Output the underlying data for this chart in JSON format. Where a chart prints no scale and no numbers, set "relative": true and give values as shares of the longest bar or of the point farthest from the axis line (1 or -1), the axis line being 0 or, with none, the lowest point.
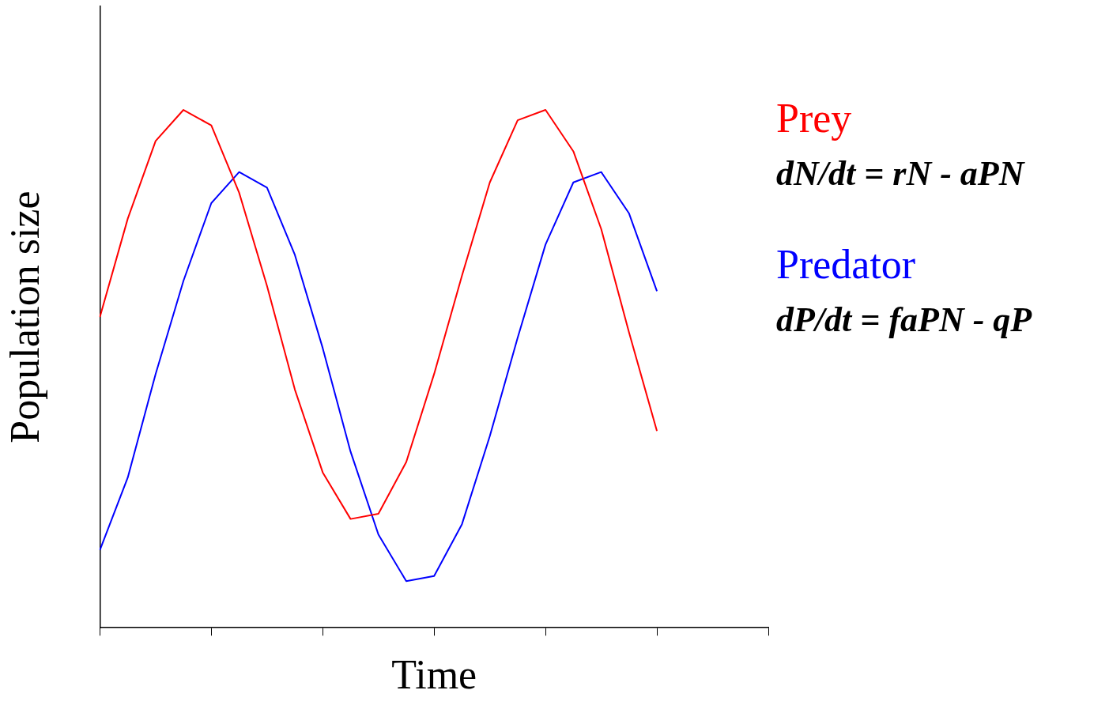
{
  "chart_data": {
    "type": "line",
    "xlabel": "Time",
    "ylabel": "Population size",
    "relative": true,
    "legend": "right",
    "grid": false,
    "marker": "none",
    "categories": [
      null,
      null,
      null,
      null,
      null,
      null,
      null,
      null,
      null,
      null,
      null,
      null,
      null,
      null,
      null,
      null,
      null,
      null,
      null,
      null,
      null,
      null,
      null,
      null,
      null
    ],
    "series": [
      {
        "name": "Prey",
        "color": "#ff0000",
        "values": [
          0.6,
          0.79,
          0.94,
          1,
          0.97,
          0.84,
          0.66,
          0.46,
          0.3,
          0.21,
          0.22,
          0.32,
          0.49,
          0.68,
          0.86,
          0.98,
          1,
          0.92,
          0.77,
          0.57,
          0.38,
          null,
          null,
          null,
          null
        ]
      },
      {
        "name": "Predator",
        "color": "#0000ff",
        "values": [
          0.15,
          0.29,
          0.49,
          0.67,
          0.82,
          0.88,
          0.85,
          0.72,
          0.54,
          0.34,
          0.18,
          0.09,
          0.1,
          0.2,
          0.37,
          0.56,
          0.74,
          0.86,
          0.88,
          0.8,
          0.65,
          null,
          null,
          null,
          null
        ]
      }
    ],
    "annotations": [
      "dN/dt = rN - aPN",
      "dP/dt = faPN - qP"
    ]
  }
}
